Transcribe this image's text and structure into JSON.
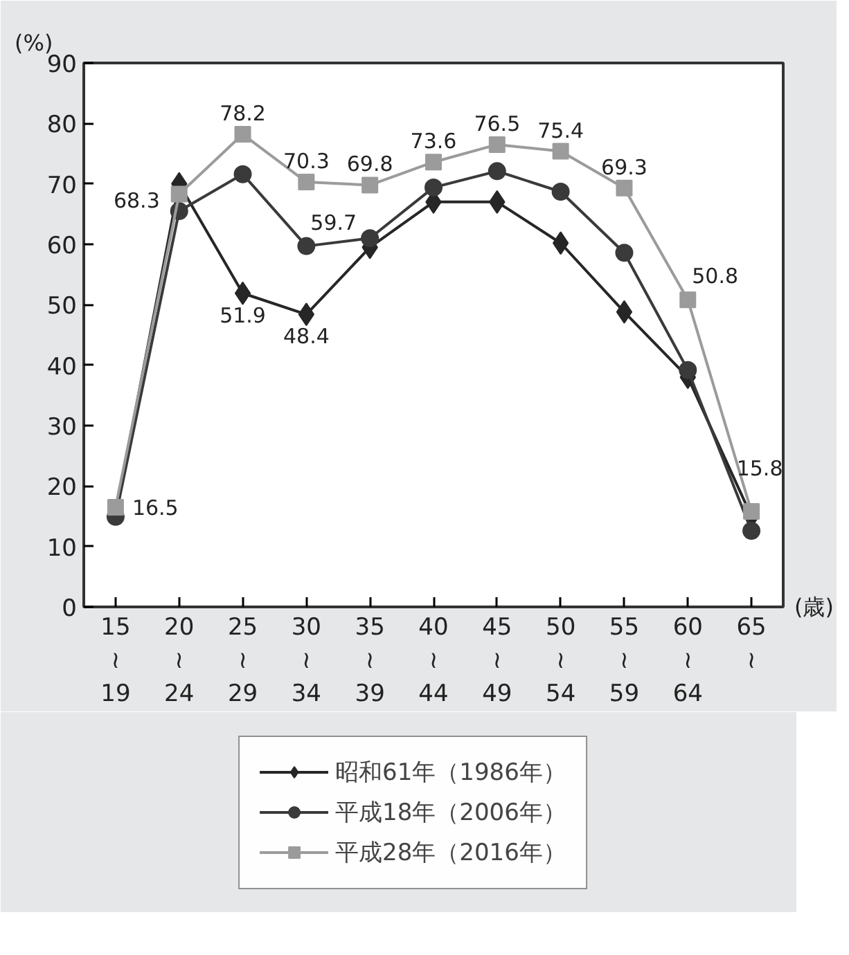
{
  "chart_data": {
    "type": "line",
    "ylabel": "(%)",
    "xlabel": "(歳)",
    "categories": [
      "15\n≀\n19",
      "20\n≀\n24",
      "25\n≀\n29",
      "30\n≀\n34",
      "35\n≀\n39",
      "40\n≀\n44",
      "45\n≀\n49",
      "50\n≀\n54",
      "55\n≀\n59",
      "60\n≀\n64",
      "65\n≀"
    ],
    "series": [
      {
        "name": "昭和61年（1986年）",
        "color": "#262626",
        "marker": "diamond",
        "values": [
          15.5,
          70.0,
          51.9,
          48.4,
          59.5,
          67.0,
          67.0,
          60.2,
          48.8,
          38.0,
          15.0
        ],
        "value_labels": [
          null,
          null,
          "51.9",
          "48.4",
          null,
          null,
          null,
          null,
          null,
          null,
          null
        ]
      },
      {
        "name": "平成18年（2006年）",
        "color": "#3a3a3a",
        "marker": "circle",
        "values": [
          14.9,
          65.5,
          71.6,
          59.7,
          61.0,
          69.4,
          72.1,
          68.7,
          58.6,
          39.2,
          12.6
        ],
        "value_labels": [
          null,
          null,
          null,
          "59.7",
          null,
          null,
          null,
          null,
          null,
          null,
          null
        ]
      },
      {
        "name": "平成28年（2016年）",
        "color": "#9b9b9b",
        "marker": "square",
        "values": [
          16.5,
          68.3,
          78.2,
          70.3,
          69.8,
          73.6,
          76.5,
          75.4,
          69.3,
          50.8,
          15.8
        ],
        "value_labels": [
          "16.5",
          "68.3",
          "78.2",
          "70.3",
          "69.8",
          "73.6",
          "76.5",
          "75.4",
          "69.3",
          "50.8",
          "15.8"
        ]
      }
    ],
    "ylim": [
      0,
      90
    ],
    "yticks": [
      0,
      10,
      20,
      30,
      40,
      50,
      60,
      70,
      80,
      90
    ],
    "grid": false,
    "legend": "bottom",
    "line_style": "solid"
  }
}
